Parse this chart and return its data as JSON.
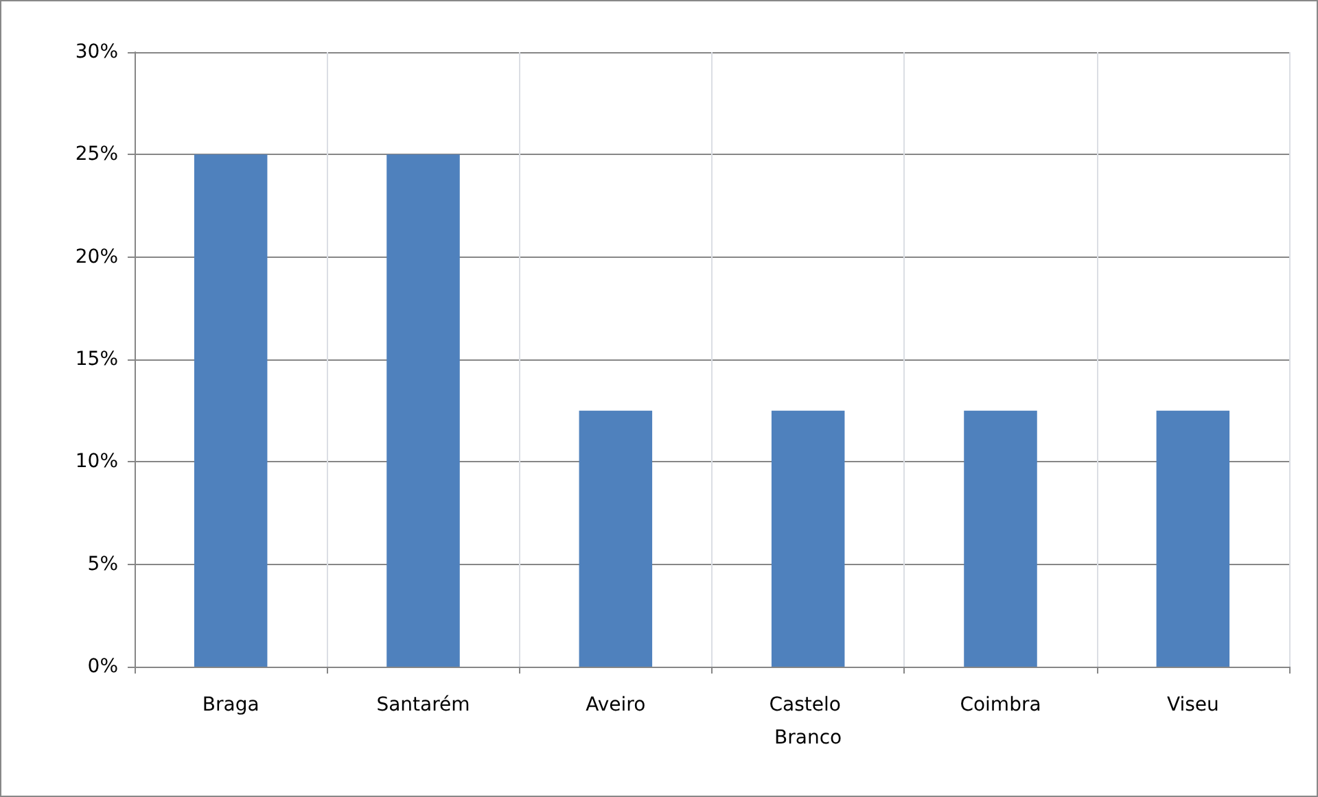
{
  "chart_data": {
    "type": "bar",
    "categories": [
      "Braga",
      "Santarém",
      "Aveiro",
      "Castelo Branco",
      "Coimbra",
      "Viseu"
    ],
    "values": [
      25,
      25,
      12.5,
      12.5,
      12.5,
      12.5
    ],
    "color": "#4f81bd",
    "ylim": [
      0,
      30
    ],
    "yticks": [
      {
        "value": 0,
        "label": "0%"
      },
      {
        "value": 5,
        "label": "5%"
      },
      {
        "value": 10,
        "label": "10%"
      },
      {
        "value": 15,
        "label": "15%"
      },
      {
        "value": 20,
        "label": "20%"
      },
      {
        "value": 25,
        "label": "25%"
      },
      {
        "value": 30,
        "label": "30%"
      }
    ],
    "grid": true
  }
}
